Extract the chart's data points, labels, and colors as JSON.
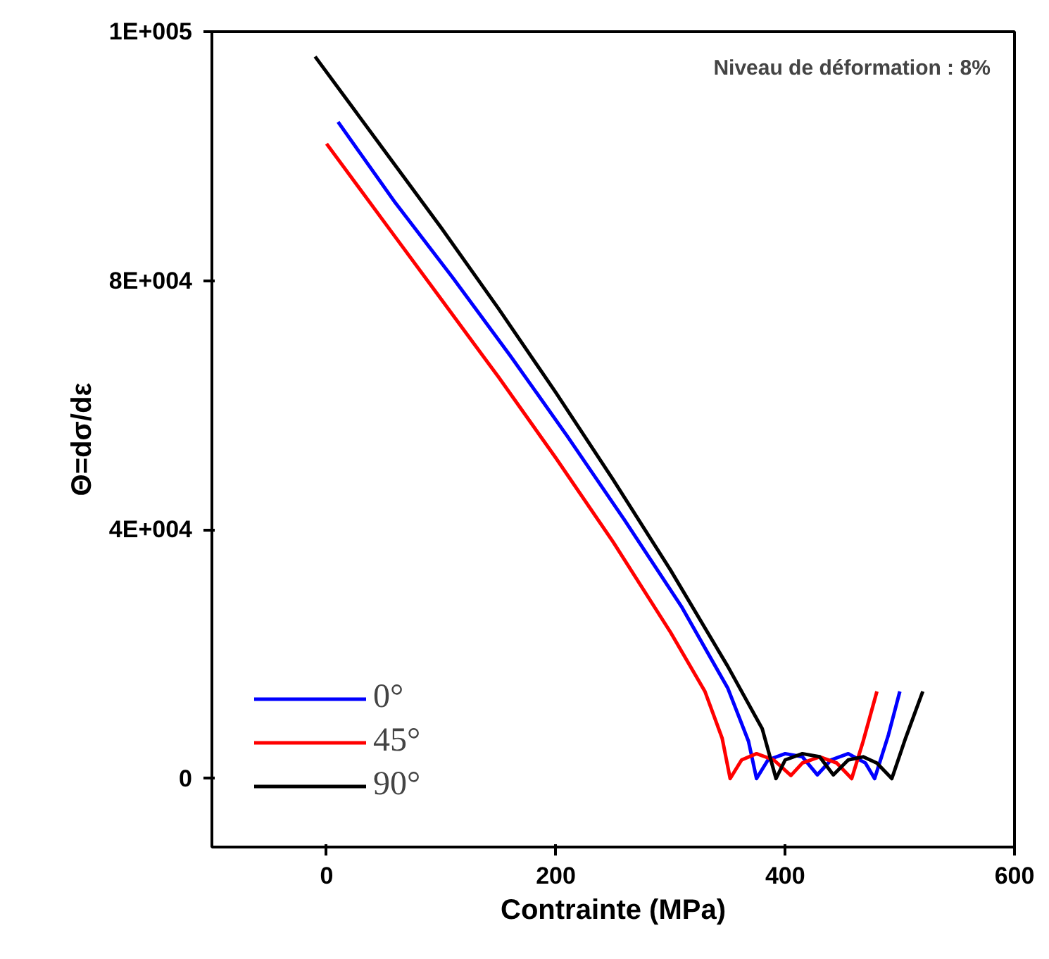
{
  "chart_data": {
    "type": "line",
    "xlabel": "Contrainte (MPa)",
    "ylabel": "Θ=dσ/dε",
    "annotations": [
      "Niveau de déformation : 8%"
    ],
    "xlim": [
      -100,
      600
    ],
    "xticks": [
      0,
      200,
      400,
      600
    ],
    "ylim": [
      -11000,
      120000
    ],
    "yticks": [
      0,
      {
        "value": 40000,
        "label": "4E+004"
      },
      {
        "value": 80000,
        "label": "8E+004"
      },
      {
        "value": 120000,
        "label": "1E+005"
      }
    ],
    "grid": false,
    "legend": "bottom left",
    "marker": "none",
    "line_style": "solid",
    "series": [
      {
        "name": "0°",
        "color": "#0000ff",
        "x": [
          10,
          60,
          110,
          160,
          210,
          260,
          310,
          350,
          368,
          375,
          385,
          400,
          415,
          428,
          440,
          455,
          470,
          478,
          490,
          500
        ],
        "values": [
          105500,
          92500,
          80500,
          68000,
          55000,
          41500,
          27500,
          14500,
          6000,
          0,
          3000,
          4000,
          3500,
          600,
          3000,
          4000,
          2500,
          0,
          7000,
          14000
        ]
      },
      {
        "name": "45°",
        "color": "#ff0000",
        "x": [
          0,
          50,
          100,
          150,
          200,
          250,
          300,
          330,
          345,
          352,
          362,
          375,
          390,
          405,
          415,
          430,
          445,
          458,
          468,
          480
        ],
        "values": [
          102000,
          89500,
          77000,
          64500,
          51500,
          38000,
          23500,
          14000,
          6500,
          0,
          3000,
          4000,
          3000,
          500,
          2500,
          3500,
          2500,
          0,
          6000,
          14000
        ]
      },
      {
        "name": "90°",
        "color": "#000000",
        "x": [
          -10,
          50,
          100,
          150,
          200,
          250,
          300,
          350,
          380,
          392,
          400,
          415,
          430,
          442,
          455,
          468,
          480,
          493,
          505,
          520
        ],
        "values": [
          116000,
          101000,
          88500,
          75500,
          62000,
          48000,
          33500,
          18000,
          8000,
          0,
          3000,
          4000,
          3500,
          600,
          3000,
          3500,
          2500,
          0,
          6500,
          14000
        ]
      }
    ]
  }
}
